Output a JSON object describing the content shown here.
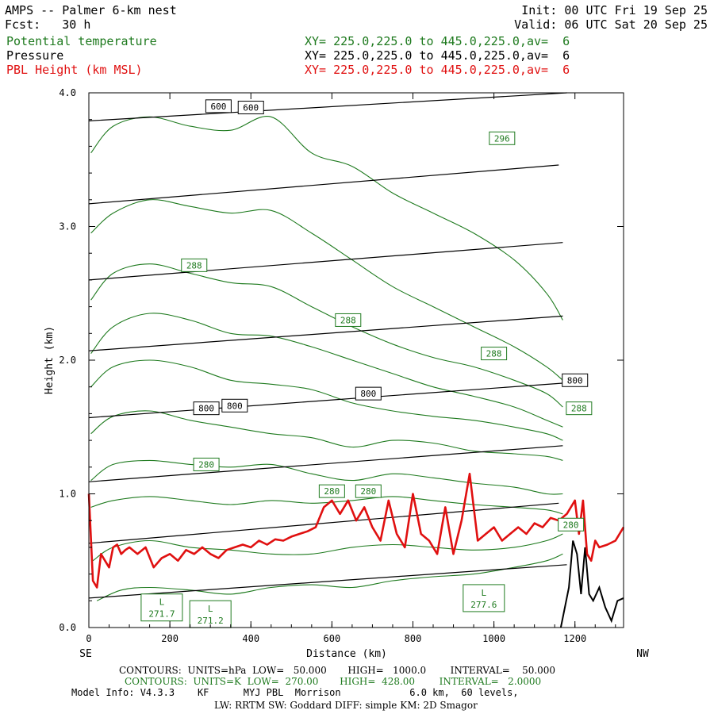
{
  "header": {
    "title": "AMPS -- Palmer 6-km nest",
    "fcst": "Fcst:   30 h",
    "init": "Init: 00 UTC Fri 19 Sep 25",
    "valid": "Valid: 06 UTC Sat 20 Sep 25",
    "fields": [
      {
        "name": "Potential temperature",
        "xy": "XY= 225.0,225.0 to 445.0,225.0,av=  6",
        "color": "#1e7a1e"
      },
      {
        "name": "Pressure",
        "xy": "XY= 225.0,225.0 to 445.0,225.0,av=  6",
        "color": "#000000"
      },
      {
        "name": "PBL Height (km MSL)",
        "xy": "XY= 225.0,225.0 to 445.0,225.0,av=  6",
        "color": "#e01010"
      }
    ]
  },
  "chart_data": {
    "type": "line",
    "title": "",
    "xlabel": "Distance (km)",
    "ylabel": "Height (km)",
    "xlim": [
      0,
      1320
    ],
    "ylim": [
      0,
      4
    ],
    "x_ticks": [
      0,
      200,
      400,
      600,
      800,
      1000,
      1200
    ],
    "y_ticks": [
      "0.0",
      "1.0",
      "2.0",
      "3.0",
      "4.0"
    ],
    "left_end_label": "SE",
    "right_end_label": "NW",
    "pressure_series": [
      {
        "x": [
          0,
          1180
        ],
        "y": [
          0.22,
          0.47
        ]
      },
      {
        "x": [
          0,
          1160
        ],
        "y": [
          0.63,
          0.93
        ]
      },
      {
        "x": [
          0,
          1170
        ],
        "y": [
          1.09,
          1.36
        ]
      },
      {
        "x": [
          0,
          1180
        ],
        "y": [
          1.57,
          1.83
        ]
      },
      {
        "x": [
          0,
          1170
        ],
        "y": [
          2.07,
          2.33
        ]
      },
      {
        "x": [
          0,
          1170
        ],
        "y": [
          2.6,
          2.88
        ]
      },
      {
        "x": [
          0,
          1160
        ],
        "y": [
          3.17,
          3.46
        ]
      },
      {
        "x": [
          0,
          1180
        ],
        "y": [
          3.79,
          4.0
        ]
      }
    ],
    "pressure_labels": [
      {
        "text": "600",
        "x": 320,
        "y": 3.9
      },
      {
        "text": "600",
        "x": 400,
        "y": 3.89
      },
      {
        "text": "800",
        "x": 290,
        "y": 1.64
      },
      {
        "text": "800",
        "x": 360,
        "y": 1.66
      },
      {
        "text": "800",
        "x": 690,
        "y": 1.75
      },
      {
        "text": "800",
        "x": 1200,
        "y": 1.85
      }
    ],
    "theta_series": [
      {
        "x": [
          5,
          60,
          150,
          250,
          350,
          450,
          550,
          650,
          750,
          850,
          950,
          1050,
          1130,
          1170
        ],
        "y": [
          3.55,
          3.75,
          3.82,
          3.75,
          3.72,
          3.82,
          3.55,
          3.45,
          3.25,
          3.1,
          2.95,
          2.75,
          2.5,
          2.3
        ]
      },
      {
        "x": [
          5,
          60,
          150,
          250,
          350,
          450,
          550,
          650,
          750,
          850,
          950,
          1050,
          1130,
          1170
        ],
        "y": [
          2.95,
          3.1,
          3.2,
          3.15,
          3.1,
          3.12,
          2.95,
          2.75,
          2.55,
          2.4,
          2.25,
          2.1,
          1.95,
          1.85
        ]
      },
      {
        "x": [
          5,
          60,
          150,
          250,
          350,
          450,
          550,
          650,
          750,
          850,
          950,
          1050,
          1130,
          1170
        ],
        "y": [
          2.45,
          2.65,
          2.72,
          2.65,
          2.58,
          2.55,
          2.4,
          2.25,
          2.12,
          2.02,
          1.95,
          1.85,
          1.75,
          1.65
        ]
      },
      {
        "x": [
          5,
          60,
          150,
          250,
          350,
          450,
          550,
          650,
          750,
          850,
          950,
          1050,
          1130,
          1170
        ],
        "y": [
          2.05,
          2.25,
          2.35,
          2.3,
          2.2,
          2.18,
          2.1,
          2.0,
          1.9,
          1.8,
          1.73,
          1.65,
          1.55,
          1.5
        ]
      },
      {
        "x": [
          5,
          60,
          150,
          250,
          350,
          450,
          550,
          650,
          750,
          850,
          950,
          1050,
          1130,
          1170
        ],
        "y": [
          1.8,
          1.95,
          2.0,
          1.95,
          1.85,
          1.82,
          1.78,
          1.68,
          1.62,
          1.58,
          1.55,
          1.5,
          1.45,
          1.4
        ]
      },
      {
        "x": [
          5,
          60,
          150,
          250,
          350,
          450,
          550,
          650,
          750,
          850,
          950,
          1050,
          1130,
          1170
        ],
        "y": [
          1.45,
          1.58,
          1.62,
          1.55,
          1.5,
          1.45,
          1.42,
          1.35,
          1.4,
          1.38,
          1.32,
          1.3,
          1.28,
          1.25
        ]
      },
      {
        "x": [
          5,
          60,
          150,
          250,
          350,
          450,
          550,
          650,
          750,
          850,
          950,
          1050,
          1130,
          1170
        ],
        "y": [
          1.1,
          1.22,
          1.25,
          1.22,
          1.2,
          1.22,
          1.15,
          1.1,
          1.15,
          1.12,
          1.08,
          1.05,
          1.0,
          1.0
        ]
      },
      {
        "x": [
          5,
          60,
          150,
          250,
          350,
          450,
          550,
          650,
          750,
          850,
          950,
          1050,
          1130,
          1170
        ],
        "y": [
          0.9,
          0.95,
          0.98,
          0.95,
          0.92,
          0.95,
          0.93,
          0.95,
          0.98,
          0.95,
          0.92,
          0.9,
          0.88,
          0.85
        ]
      },
      {
        "x": [
          10,
          60,
          150,
          250,
          350,
          450,
          550,
          650,
          750,
          850,
          950,
          1050,
          1130,
          1170
        ],
        "y": [
          0.5,
          0.6,
          0.65,
          0.6,
          0.58,
          0.55,
          0.55,
          0.6,
          0.62,
          0.6,
          0.58,
          0.6,
          0.65,
          0.7
        ]
      },
      {
        "x": [
          20,
          80,
          150,
          250,
          350,
          450,
          550,
          650,
          750,
          850,
          950,
          1050,
          1130,
          1170
        ],
        "y": [
          0.2,
          0.28,
          0.3,
          0.28,
          0.25,
          0.3,
          0.32,
          0.3,
          0.35,
          0.38,
          0.4,
          0.45,
          0.5,
          0.55
        ]
      }
    ],
    "theta_labels": [
      {
        "text": "296",
        "x": 1020,
        "y": 3.66
      },
      {
        "text": "288",
        "x": 260,
        "y": 2.71
      },
      {
        "text": "288",
        "x": 640,
        "y": 2.3
      },
      {
        "text": "288",
        "x": 1000,
        "y": 2.05
      },
      {
        "text": "288",
        "x": 1210,
        "y": 1.64
      },
      {
        "text": "280",
        "x": 290,
        "y": 1.22
      },
      {
        "text": "280",
        "x": 600,
        "y": 1.02
      },
      {
        "text": "280",
        "x": 690,
        "y": 1.02
      },
      {
        "text": "280",
        "x": 1190,
        "y": 0.77
      }
    ],
    "lows": [
      {
        "text": "L",
        "value": "271.7",
        "x": 180,
        "y": 0.15
      },
      {
        "text": "L",
        "value": "271.2",
        "x": 300,
        "y": 0.1
      },
      {
        "text": "L",
        "value": "277.6",
        "x": 975,
        "y": 0.22
      }
    ],
    "terrain": {
      "x": [
        1165,
        1185,
        1195,
        1205,
        1215,
        1225,
        1235,
        1245,
        1260,
        1275,
        1290,
        1305,
        1320
      ],
      "y": [
        0.0,
        0.3,
        0.65,
        0.55,
        0.25,
        0.6,
        0.25,
        0.2,
        0.3,
        0.15,
        0.05,
        0.2,
        0.22
      ]
    },
    "pbl_height": {
      "name": "PBL Height (km MSL)",
      "x": [
        0,
        10,
        20,
        30,
        40,
        50,
        60,
        70,
        80,
        90,
        100,
        120,
        140,
        160,
        180,
        200,
        220,
        240,
        260,
        280,
        300,
        320,
        340,
        360,
        380,
        400,
        420,
        440,
        460,
        480,
        500,
        520,
        540,
        560,
        580,
        600,
        620,
        640,
        660,
        680,
        700,
        720,
        740,
        760,
        780,
        800,
        820,
        840,
        860,
        880,
        900,
        920,
        940,
        960,
        980,
        1000,
        1020,
        1040,
        1060,
        1080,
        1100,
        1120,
        1140,
        1160,
        1180,
        1200,
        1210,
        1220,
        1230,
        1240,
        1250,
        1260,
        1280,
        1300,
        1320
      ],
      "y": [
        1.0,
        0.35,
        0.3,
        0.55,
        0.5,
        0.45,
        0.6,
        0.62,
        0.55,
        0.58,
        0.6,
        0.55,
        0.6,
        0.45,
        0.52,
        0.55,
        0.5,
        0.58,
        0.55,
        0.6,
        0.55,
        0.52,
        0.58,
        0.6,
        0.62,
        0.6,
        0.65,
        0.62,
        0.66,
        0.65,
        0.68,
        0.7,
        0.72,
        0.75,
        0.9,
        0.95,
        0.85,
        0.95,
        0.8,
        0.9,
        0.75,
        0.65,
        0.95,
        0.7,
        0.6,
        1.0,
        0.7,
        0.65,
        0.55,
        0.9,
        0.55,
        0.8,
        1.15,
        0.65,
        0.7,
        0.75,
        0.65,
        0.7,
        0.75,
        0.7,
        0.78,
        0.75,
        0.82,
        0.8,
        0.85,
        0.95,
        0.7,
        0.95,
        0.55,
        0.5,
        0.65,
        0.6,
        0.62,
        0.65,
        0.75
      ],
      "color": "#e01010"
    },
    "colors": {
      "pressure": "#000000",
      "theta": "#1e7a1e",
      "pbl": "#e01010"
    }
  },
  "footer": {
    "contours_p": "CONTOURS:  UNITS=hPa  LOW=   50.000       HIGH=   1000.0        INTERVAL=    50.000",
    "contours_t": "CONTOURS:  UNITS=K  LOW=  270.00       HIGH=  428.00        INTERVAL=   2.0000",
    "model_info": "Model Info: V4.3.3    KF      MYJ PBL  Morrison            6.0 km,  60 levels,",
    "model_info2": "LW: RRTM SW: Goddard DIFF: simple KM: 2D Smagor"
  }
}
